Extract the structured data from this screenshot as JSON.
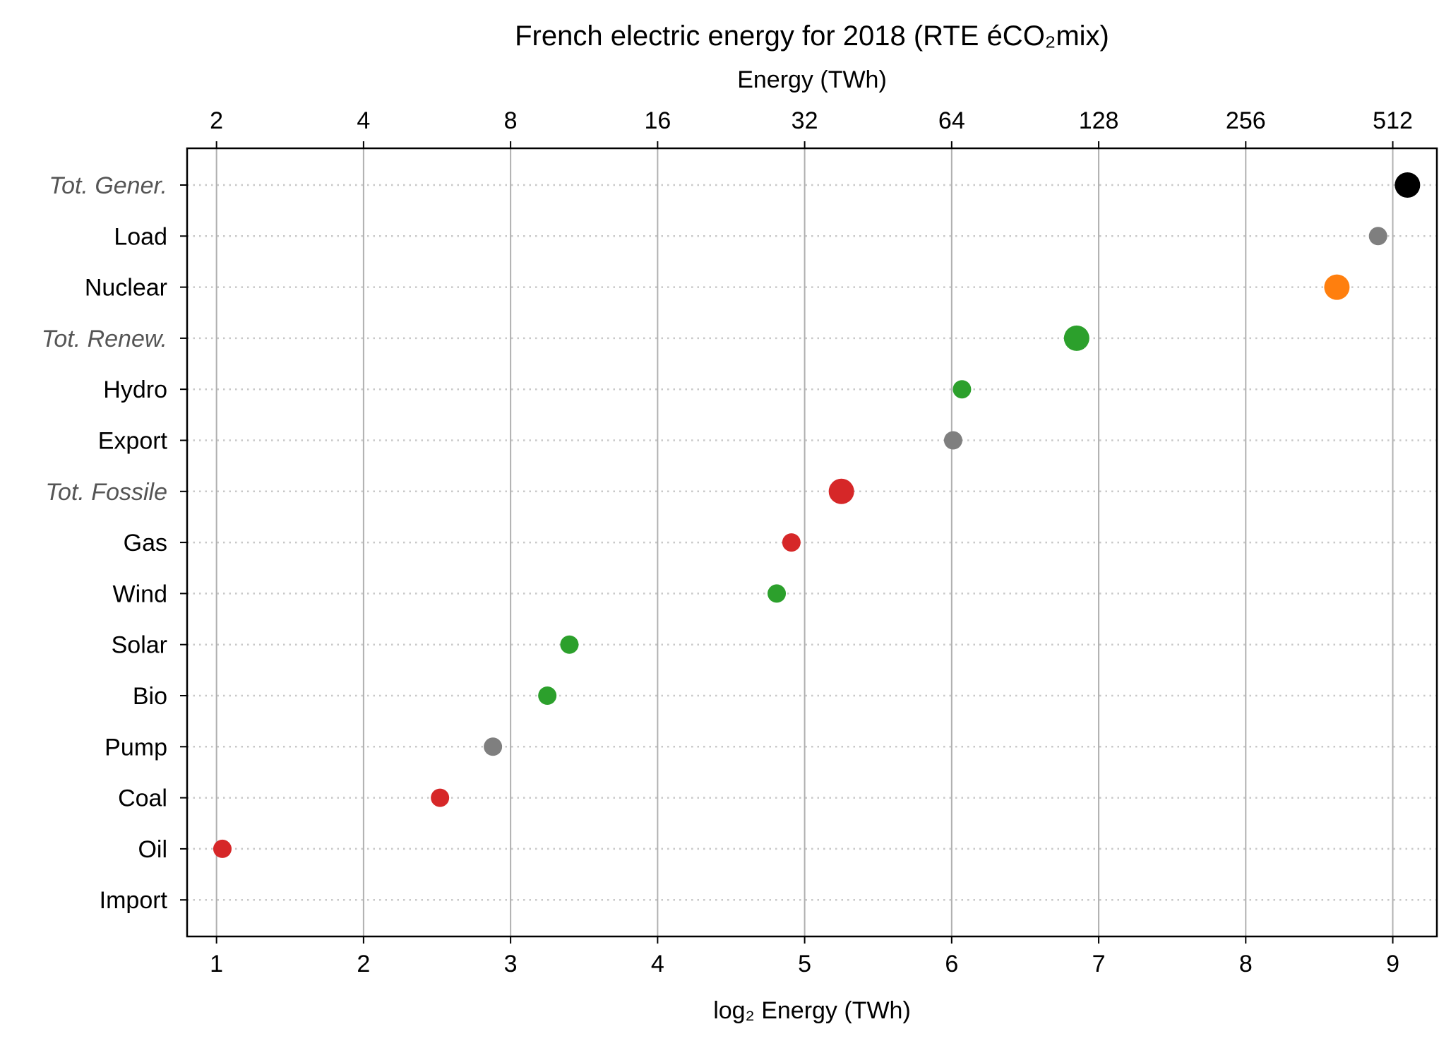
{
  "chart_data": {
    "type": "scatter",
    "title": "French electric energy for 2018 (RTE éCO₂mix)",
    "xlabel": "log₂ Energy (TWh)",
    "x2label": "Energy (TWh)",
    "xlim": [
      0.8,
      9.3
    ],
    "xticks": [
      1,
      2,
      3,
      4,
      5,
      6,
      7,
      8,
      9
    ],
    "xtick_labels": [
      "1",
      "2",
      "3",
      "4",
      "5",
      "6",
      "7",
      "8",
      "9"
    ],
    "x2tick_labels": [
      "2",
      "4",
      "8",
      "16",
      "32",
      "64",
      "128",
      "256",
      "512"
    ],
    "grid": "vertical solid gray; horizontal dotted per category",
    "categories": [
      "Tot. Gener.",
      "Load",
      "Nuclear",
      "Tot. Renew.",
      "Hydro",
      "Export",
      "Tot. Fossile",
      "Gas",
      "Wind",
      "Solar",
      "Bio",
      "Pump",
      "Coal",
      "Oil",
      "Import"
    ],
    "points": [
      {
        "label": "Tot. Gener.",
        "x": 9.1,
        "color": "#000000",
        "size": "large",
        "italic": true
      },
      {
        "label": "Load",
        "x": 8.9,
        "color": "#7f7f7f",
        "size": "small",
        "italic": false
      },
      {
        "label": "Nuclear",
        "x": 8.62,
        "color": "#ff7f0e",
        "size": "large",
        "italic": false
      },
      {
        "label": "Tot. Renew.",
        "x": 6.85,
        "color": "#2ca02c",
        "size": "large",
        "italic": true
      },
      {
        "label": "Hydro",
        "x": 6.07,
        "color": "#2ca02c",
        "size": "small",
        "italic": false
      },
      {
        "label": "Export",
        "x": 6.01,
        "color": "#7f7f7f",
        "size": "small",
        "italic": false
      },
      {
        "label": "Tot. Fossile",
        "x": 5.25,
        "color": "#d62728",
        "size": "large",
        "italic": true
      },
      {
        "label": "Gas",
        "x": 4.91,
        "color": "#d62728",
        "size": "small",
        "italic": false
      },
      {
        "label": "Wind",
        "x": 4.81,
        "color": "#2ca02c",
        "size": "small",
        "italic": false
      },
      {
        "label": "Solar",
        "x": 3.4,
        "color": "#2ca02c",
        "size": "small",
        "italic": false
      },
      {
        "label": "Bio",
        "x": 3.25,
        "color": "#2ca02c",
        "size": "small",
        "italic": false
      },
      {
        "label": "Pump",
        "x": 2.88,
        "color": "#7f7f7f",
        "size": "small",
        "italic": false
      },
      {
        "label": "Coal",
        "x": 2.52,
        "color": "#d62728",
        "size": "small",
        "italic": false
      },
      {
        "label": "Oil",
        "x": 1.04,
        "color": "#d62728",
        "size": "small",
        "italic": false
      },
      {
        "label": "Import",
        "x": null,
        "color": "#7f7f7f",
        "size": "small",
        "italic": false
      }
    ]
  }
}
